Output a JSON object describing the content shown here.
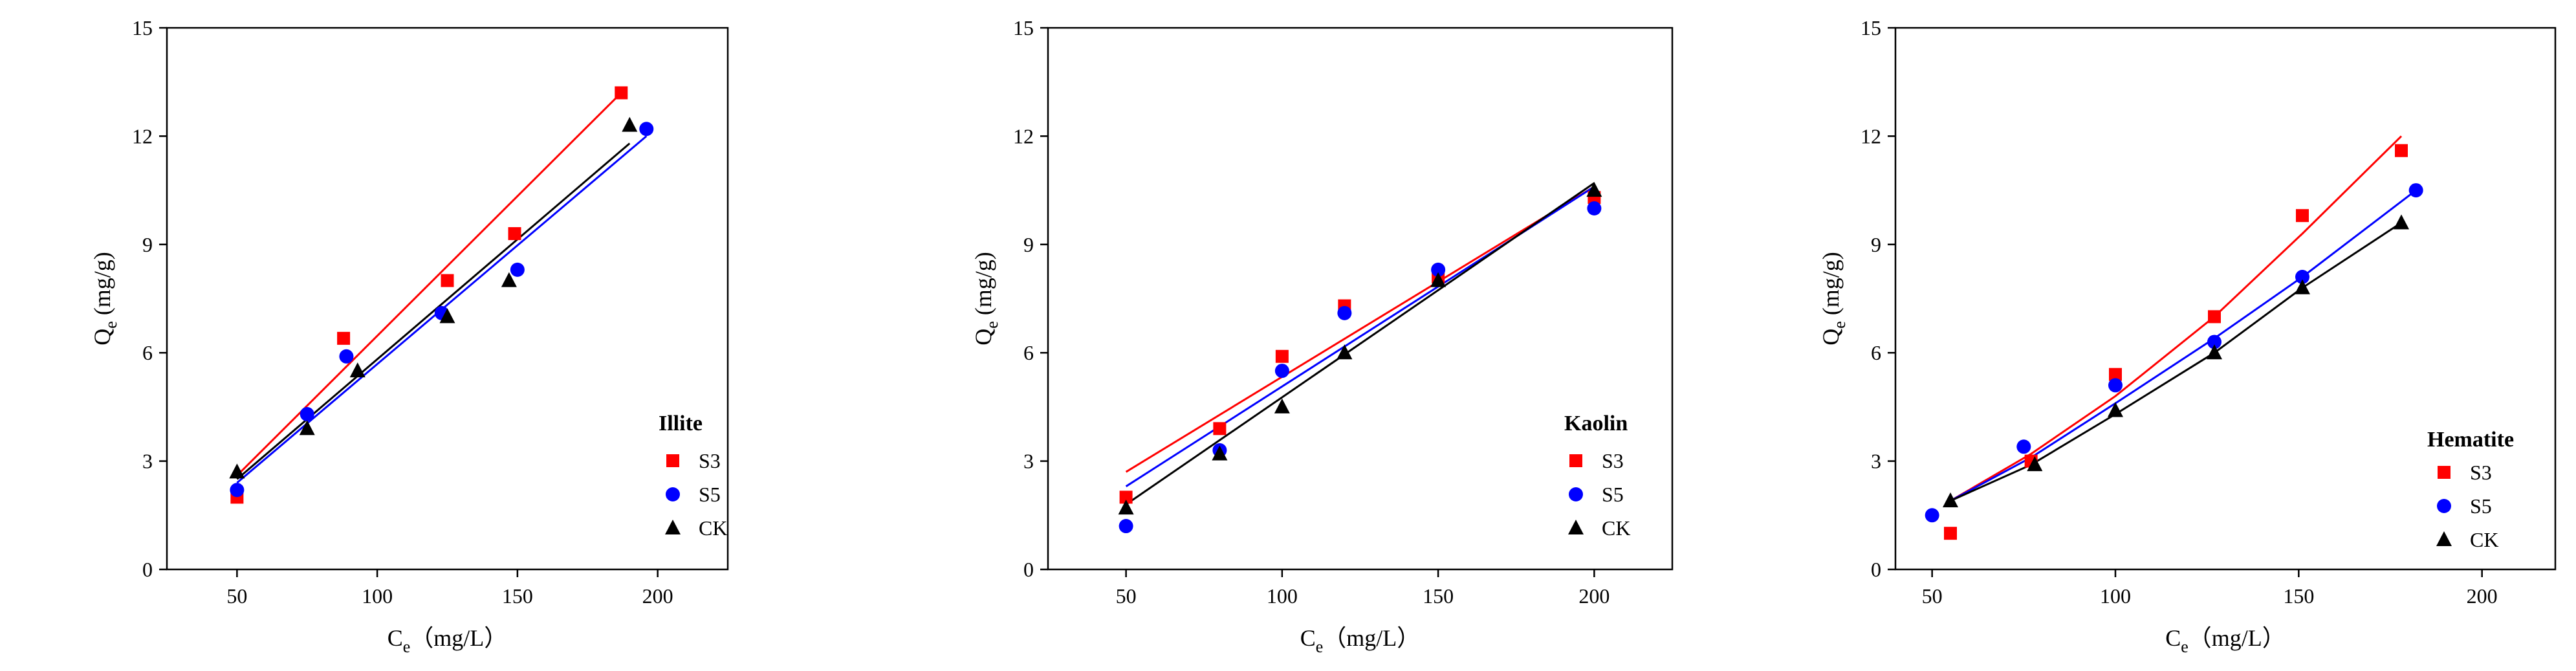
{
  "chart_data": [
    {
      "type": "scatter",
      "title": "Illite",
      "xlabel": "Ce",
      "xlabel_sub": "e",
      "xlabel_base": "C",
      "xlabel_unit": "（mg/L）",
      "ylabel": "Qe (mg/g)",
      "ylabel_base": "Q",
      "ylabel_sub": "e",
      "ylabel_unit": " (mg/g)",
      "xlim": [
        25,
        225
      ],
      "ylim": [
        0,
        15
      ],
      "xticks": [
        50,
        100,
        150,
        200
      ],
      "yticks": [
        0,
        3,
        6,
        9,
        12,
        15
      ],
      "legend_loc": "lower-right",
      "series": [
        {
          "name": "S3",
          "marker": "square",
          "color": "#ff0000",
          "x": [
            50,
            88,
            125,
            149,
            187
          ],
          "y": [
            2.0,
            6.4,
            8.0,
            9.3,
            13.2
          ],
          "fit_x": [
            50,
            187
          ],
          "fit_y": [
            2.6,
            13.2
          ]
        },
        {
          "name": "S5",
          "marker": "circle",
          "color": "#0000ff",
          "x": [
            50,
            75,
            89,
            123,
            150,
            196
          ],
          "y": [
            2.2,
            4.3,
            5.9,
            7.1,
            8.3,
            12.2
          ],
          "fit_x": [
            50,
            196
          ],
          "fit_y": [
            2.4,
            12.0
          ]
        },
        {
          "name": "CK",
          "marker": "triangle",
          "color": "#000000",
          "x": [
            50,
            75,
            93,
            125,
            147,
            190
          ],
          "y": [
            2.7,
            3.9,
            5.5,
            7.0,
            8.0,
            12.3
          ],
          "fit_x": [
            50,
            190
          ],
          "fit_y": [
            2.5,
            11.8
          ]
        }
      ]
    },
    {
      "type": "scatter",
      "title": "Kaolin",
      "xlabel": "Ce",
      "xlabel_sub": "e",
      "xlabel_base": "C",
      "xlabel_unit": "（mg/L）",
      "ylabel": "Qe (mg/g)",
      "ylabel_base": "Q",
      "ylabel_sub": "e",
      "ylabel_unit": " (mg/g)",
      "xlim": [
        25,
        225
      ],
      "ylim": [
        0,
        15
      ],
      "xticks": [
        50,
        100,
        150,
        200
      ],
      "yticks": [
        0,
        3,
        6,
        9,
        12,
        15
      ],
      "legend_loc": "lower-right",
      "series": [
        {
          "name": "S3",
          "marker": "square",
          "color": "#ff0000",
          "x": [
            50,
            80,
            100,
            120,
            150,
            200
          ],
          "y": [
            2.0,
            3.9,
            5.9,
            7.3,
            8.1,
            10.3
          ],
          "fit_x": [
            50,
            200
          ],
          "fit_y": [
            2.7,
            10.6
          ]
        },
        {
          "name": "S5",
          "marker": "circle",
          "color": "#0000ff",
          "x": [
            50,
            80,
            100,
            120,
            150,
            200
          ],
          "y": [
            1.2,
            3.3,
            5.5,
            7.1,
            8.3,
            10.0
          ],
          "fit_x": [
            50,
            200
          ],
          "fit_y": [
            2.3,
            10.6
          ]
        },
        {
          "name": "CK",
          "marker": "triangle",
          "color": "#000000",
          "x": [
            50,
            80,
            100,
            120,
            150,
            200
          ],
          "y": [
            1.7,
            3.2,
            4.5,
            6.0,
            8.0,
            10.5
          ],
          "fit_x": [
            50,
            200
          ],
          "fit_y": [
            1.8,
            10.7
          ]
        }
      ]
    },
    {
      "type": "scatter",
      "title": "Hematite",
      "xlabel": "Ce",
      "xlabel_sub": "e",
      "xlabel_base": "C",
      "xlabel_unit": "（mg/L）",
      "ylabel": "Qe (mg/g)",
      "ylabel_base": "Q",
      "ylabel_sub": "e",
      "ylabel_unit": " (mg/g)",
      "xlim": [
        40,
        220
      ],
      "ylim": [
        0,
        15
      ],
      "xticks": [
        50,
        100,
        150,
        200
      ],
      "yticks": [
        0,
        3,
        6,
        9,
        12,
        15
      ],
      "legend_loc": "lower-right",
      "series": [
        {
          "name": "S3",
          "marker": "square",
          "color": "#ff0000",
          "x": [
            55,
            77,
            100,
            127,
            151,
            178
          ],
          "y": [
            1.0,
            3.0,
            5.4,
            7.0,
            9.8,
            11.6
          ],
          "fit_x": [
            55,
            77,
            100,
            127,
            151,
            178
          ],
          "fit_y": [
            1.9,
            3.2,
            4.8,
            7.0,
            9.3,
            12.0
          ]
        },
        {
          "name": "S5",
          "marker": "circle",
          "color": "#0000ff",
          "x": [
            50,
            75,
            100,
            127,
            151,
            182
          ],
          "y": [
            1.5,
            3.4,
            5.1,
            6.3,
            8.1,
            10.5
          ],
          "fit_x": [
            55,
            77,
            100,
            127,
            151,
            182
          ],
          "fit_y": [
            1.9,
            3.1,
            4.6,
            6.4,
            8.1,
            10.5
          ]
        },
        {
          "name": "CK",
          "marker": "triangle",
          "color": "#000000",
          "x": [
            55,
            78,
            100,
            127,
            151,
            178
          ],
          "y": [
            1.9,
            2.9,
            4.4,
            6.0,
            7.8,
            9.6
          ],
          "fit_x": [
            55,
            77,
            100,
            127,
            151,
            178
          ],
          "fit_y": [
            1.9,
            2.9,
            4.3,
            6.0,
            7.8,
            9.6
          ]
        }
      ]
    }
  ]
}
